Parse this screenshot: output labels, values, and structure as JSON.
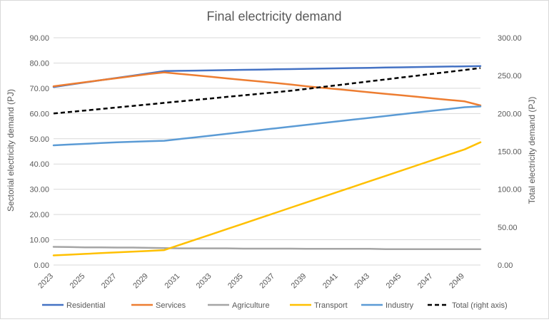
{
  "chart_data": {
    "type": "line",
    "title": "Final electricity demand",
    "ylabel": "Sectorial electricity demand (PJ)",
    "y2label": "Total electricity demand (PJ)",
    "xlabel": "",
    "x": [
      2023,
      2024,
      2025,
      2026,
      2027,
      2028,
      2029,
      2030,
      2031,
      2032,
      2033,
      2034,
      2035,
      2036,
      2037,
      2038,
      2039,
      2040,
      2041,
      2042,
      2043,
      2044,
      2045,
      2046,
      2047,
      2048,
      2049,
      2050
    ],
    "x_tick_labels": [
      "2023",
      "2025",
      "2027",
      "2029",
      "2031",
      "2033",
      "2035",
      "2037",
      "2039",
      "2041",
      "2043",
      "2045",
      "2047",
      "2049"
    ],
    "ylim": [
      0,
      90
    ],
    "y_ticks": [
      "0.00",
      "10.00",
      "20.00",
      "30.00",
      "40.00",
      "50.00",
      "60.00",
      "70.00",
      "80.00",
      "90.00"
    ],
    "y2lim": [
      0,
      300
    ],
    "y2_ticks": [
      "0.00",
      "50.00",
      "100.00",
      "150.00",
      "200.00",
      "250.00",
      "300.00"
    ],
    "grid": true,
    "legend_position": "bottom",
    "series": [
      {
        "name": "Residential",
        "color": "#4472c4",
        "axis": "left",
        "values": [
          70.5,
          71.4,
          72.3,
          73.2,
          74.1,
          75.0,
          75.9,
          76.8,
          76.9,
          77.0,
          77.1,
          77.2,
          77.3,
          77.4,
          77.5,
          77.6,
          77.7,
          77.8,
          77.9,
          78.0,
          78.1,
          78.2,
          78.3,
          78.4,
          78.5,
          78.6,
          78.7,
          78.8
        ]
      },
      {
        "name": "Services",
        "color": "#ed7d31",
        "axis": "left",
        "values": [
          70.8,
          71.6,
          72.4,
          73.2,
          74.0,
          74.8,
          75.6,
          76.3,
          75.7,
          75.1,
          74.5,
          73.9,
          73.3,
          72.7,
          72.1,
          71.5,
          70.8,
          70.2,
          69.6,
          69.0,
          68.4,
          67.8,
          67.2,
          66.6,
          66.0,
          65.4,
          64.8,
          63.2
        ]
      },
      {
        "name": "Agriculture",
        "color": "#a5a5a5",
        "axis": "left",
        "values": [
          7.2,
          7.1,
          7.0,
          7.0,
          6.9,
          6.9,
          6.8,
          6.7,
          6.6,
          6.6,
          6.6,
          6.6,
          6.5,
          6.5,
          6.5,
          6.5,
          6.4,
          6.4,
          6.4,
          6.4,
          6.4,
          6.3,
          6.3,
          6.3,
          6.3,
          6.3,
          6.3,
          6.3
        ]
      },
      {
        "name": "Transport",
        "color": "#ffc000",
        "axis": "left",
        "values": [
          3.8,
          4.1,
          4.4,
          4.7,
          5.0,
          5.3,
          5.6,
          5.9,
          8.0,
          10.1,
          12.2,
          14.3,
          16.4,
          18.5,
          20.6,
          22.7,
          24.8,
          26.9,
          29.0,
          31.1,
          33.2,
          35.3,
          37.4,
          39.5,
          41.6,
          43.7,
          45.8,
          48.6
        ]
      },
      {
        "name": "Industry",
        "color": "#5b9bd5",
        "axis": "left",
        "values": [
          47.4,
          47.7,
          48.0,
          48.3,
          48.6,
          48.8,
          49.0,
          49.2,
          49.9,
          50.6,
          51.3,
          52.0,
          52.7,
          53.4,
          54.1,
          54.8,
          55.5,
          56.2,
          56.9,
          57.6,
          58.3,
          59.0,
          59.7,
          60.4,
          61.1,
          61.8,
          62.5,
          62.8
        ]
      },
      {
        "name": "Total (right axis)",
        "color": "#000000",
        "axis": "right",
        "dashed": true,
        "values": [
          200.0,
          202.0,
          204.0,
          206.0,
          208.0,
          210.0,
          212.0,
          214.0,
          216.0,
          218.0,
          220.0,
          222.0,
          224.0,
          226.0,
          228.0,
          230.0,
          232.5,
          235.0,
          237.5,
          240.0,
          242.5,
          245.0,
          247.5,
          250.0,
          252.5,
          255.0,
          257.5,
          260.0
        ]
      }
    ]
  }
}
